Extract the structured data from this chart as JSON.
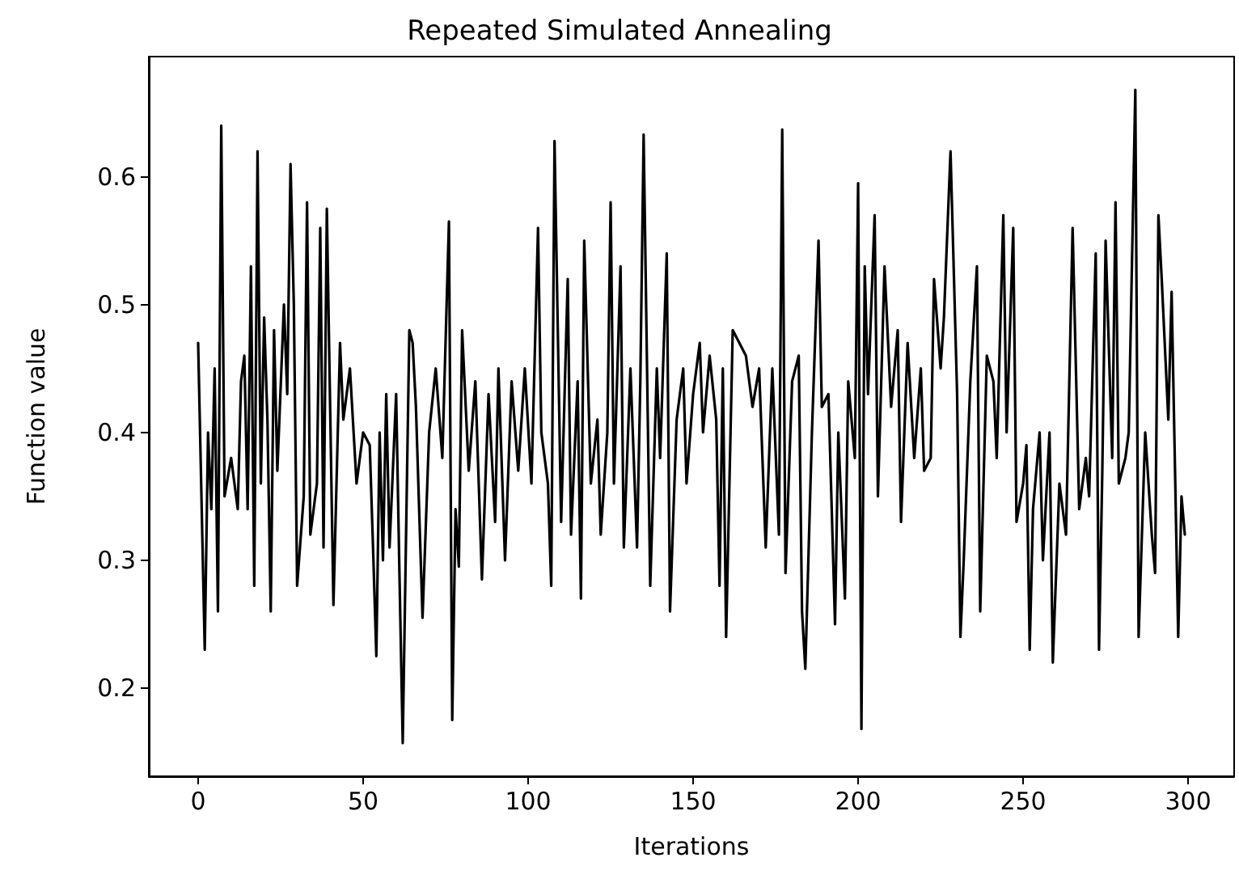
{
  "chart_data": {
    "type": "line",
    "title": "Repeated Simulated Annealing",
    "xlabel": "Iterations",
    "ylabel": "Function value",
    "x": [
      0,
      2,
      3,
      4,
      5,
      6,
      7,
      8,
      10,
      12,
      13,
      14,
      15,
      16,
      17,
      18,
      19,
      20,
      21,
      22,
      23,
      24,
      26,
      27,
      28,
      29,
      30,
      32,
      33,
      34,
      36,
      37,
      38,
      39,
      41,
      43,
      44,
      46,
      48,
      50,
      52,
      53,
      54,
      55,
      56,
      57,
      58,
      60,
      61,
      62,
      64,
      65,
      66,
      68,
      70,
      72,
      74,
      76,
      77,
      78,
      79,
      80,
      82,
      84,
      86,
      88,
      89,
      90,
      91,
      93,
      95,
      97,
      99,
      101,
      103,
      104,
      106,
      107,
      108,
      110,
      112,
      113,
      115,
      116,
      117,
      119,
      121,
      122,
      124,
      125,
      126,
      128,
      129,
      131,
      133,
      134,
      135,
      137,
      139,
      140,
      142,
      143,
      145,
      147,
      148,
      150,
      152,
      153,
      155,
      157,
      158,
      159,
      160,
      162,
      164,
      166,
      168,
      170,
      172,
      174,
      176,
      177,
      178,
      180,
      182,
      183,
      184,
      186,
      188,
      189,
      191,
      193,
      194,
      196,
      197,
      199,
      200,
      201,
      202,
      203,
      205,
      206,
      208,
      210,
      212,
      213,
      215,
      217,
      219,
      220,
      222,
      223,
      225,
      226,
      228,
      230,
      231,
      232,
      234,
      236,
      237,
      239,
      241,
      242,
      244,
      245,
      247,
      248,
      250,
      251,
      252,
      253,
      255,
      256,
      258,
      259,
      261,
      263,
      265,
      267,
      269,
      270,
      272,
      273,
      274,
      275,
      277,
      278,
      279,
      281,
      282,
      284,
      285,
      287,
      289,
      290,
      291,
      292,
      294,
      295,
      297,
      298,
      299
    ],
    "series": [
      {
        "color": "#000000",
        "values": [
          0.47,
          0.23,
          0.4,
          0.34,
          0.45,
          0.26,
          0.64,
          0.35,
          0.38,
          0.34,
          0.44,
          0.46,
          0.34,
          0.53,
          0.28,
          0.62,
          0.36,
          0.49,
          0.41,
          0.26,
          0.48,
          0.37,
          0.5,
          0.43,
          0.61,
          0.5,
          0.28,
          0.35,
          0.58,
          0.32,
          0.36,
          0.56,
          0.31,
          0.575,
          0.265,
          0.47,
          0.41,
          0.45,
          0.36,
          0.4,
          0.39,
          0.31,
          0.225,
          0.4,
          0.3,
          0.43,
          0.31,
          0.43,
          0.29,
          0.157,
          0.48,
          0.47,
          0.42,
          0.255,
          0.4,
          0.45,
          0.38,
          0.565,
          0.175,
          0.34,
          0.295,
          0.48,
          0.37,
          0.44,
          0.285,
          0.43,
          0.38,
          0.33,
          0.45,
          0.3,
          0.44,
          0.37,
          0.45,
          0.36,
          0.56,
          0.4,
          0.36,
          0.28,
          0.628,
          0.33,
          0.52,
          0.32,
          0.44,
          0.27,
          0.55,
          0.36,
          0.41,
          0.32,
          0.4,
          0.58,
          0.36,
          0.53,
          0.31,
          0.45,
          0.31,
          0.44,
          0.633,
          0.28,
          0.45,
          0.38,
          0.54,
          0.26,
          0.41,
          0.45,
          0.36,
          0.43,
          0.47,
          0.4,
          0.46,
          0.41,
          0.28,
          0.45,
          0.24,
          0.48,
          0.47,
          0.46,
          0.42,
          0.45,
          0.31,
          0.45,
          0.32,
          0.637,
          0.29,
          0.44,
          0.46,
          0.26,
          0.215,
          0.4,
          0.55,
          0.42,
          0.43,
          0.25,
          0.4,
          0.27,
          0.44,
          0.38,
          0.595,
          0.168,
          0.53,
          0.43,
          0.57,
          0.35,
          0.53,
          0.42,
          0.48,
          0.33,
          0.47,
          0.38,
          0.45,
          0.37,
          0.38,
          0.52,
          0.45,
          0.49,
          0.62,
          0.43,
          0.24,
          0.3,
          0.44,
          0.53,
          0.26,
          0.46,
          0.44,
          0.38,
          0.57,
          0.4,
          0.56,
          0.33,
          0.36,
          0.39,
          0.23,
          0.34,
          0.4,
          0.3,
          0.4,
          0.22,
          0.36,
          0.32,
          0.56,
          0.34,
          0.38,
          0.35,
          0.54,
          0.23,
          0.37,
          0.55,
          0.38,
          0.58,
          0.36,
          0.38,
          0.4,
          0.668,
          0.24,
          0.4,
          0.32,
          0.29,
          0.57,
          0.52,
          0.41,
          0.51,
          0.24,
          0.35,
          0.32
        ]
      }
    ],
    "xlim": [
      -14.95,
      313.95
    ],
    "ylim": [
      0.131,
      0.694
    ],
    "xticks": [
      0,
      50,
      100,
      150,
      200,
      250,
      300
    ],
    "yticks": [
      0.2,
      0.3,
      0.4,
      0.5,
      0.6
    ],
    "grid": false,
    "marker": "none",
    "line_style": "solid"
  }
}
